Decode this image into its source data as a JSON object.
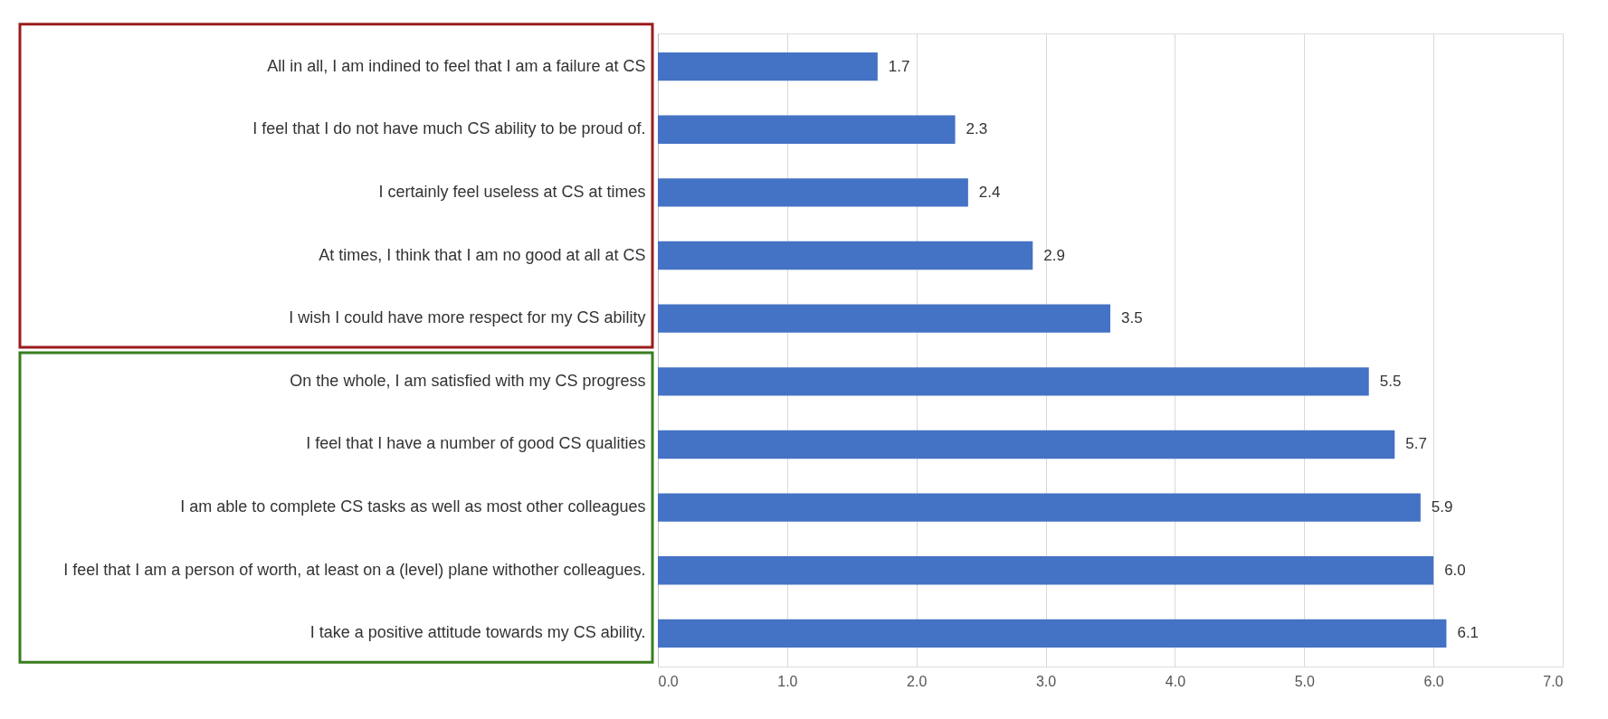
{
  "chart_data": {
    "type": "bar",
    "orientation": "horizontal",
    "categories": [
      "All in all, I am indined to feel that I am a failure at CS",
      "I feel that I do not have much CS ability to be proud of.",
      "I certainly feel useless at CS at times",
      "At times, I think that I am no good at all at CS",
      "I wish I could have more respect for my CS ability",
      "On the whole, I am satisfied with my CS progress",
      "I feel that I have a number of good CS qualities",
      "I am able to complete CS tasks as well as most other colleagues",
      "I feel that I am a person of worth, at least on a (level) plane withother colleagues.",
      "I take a positive attitude towards my CS ability."
    ],
    "values": [
      1.7,
      2.3,
      2.4,
      2.9,
      3.5,
      5.5,
      5.7,
      5.9,
      6.0,
      6.1
    ],
    "value_labels": [
      "1.7",
      "2.3",
      "2.4",
      "2.9",
      "3.5",
      "5.5",
      "5.7",
      "5.9",
      "6.0",
      "6.1"
    ],
    "color": "#4472c4",
    "xlim": [
      0,
      7
    ],
    "xticks": [
      {
        "value": 0,
        "label": "0.0"
      },
      {
        "value": 1,
        "label": "1.0"
      },
      {
        "value": 2,
        "label": "2.0"
      },
      {
        "value": 3,
        "label": "3.0"
      },
      {
        "value": 4,
        "label": "4.0"
      },
      {
        "value": 5,
        "label": "5.0"
      },
      {
        "value": 6,
        "label": "6.0"
      },
      {
        "value": 7,
        "label": "7.0"
      }
    ],
    "grid": "x"
  }
}
